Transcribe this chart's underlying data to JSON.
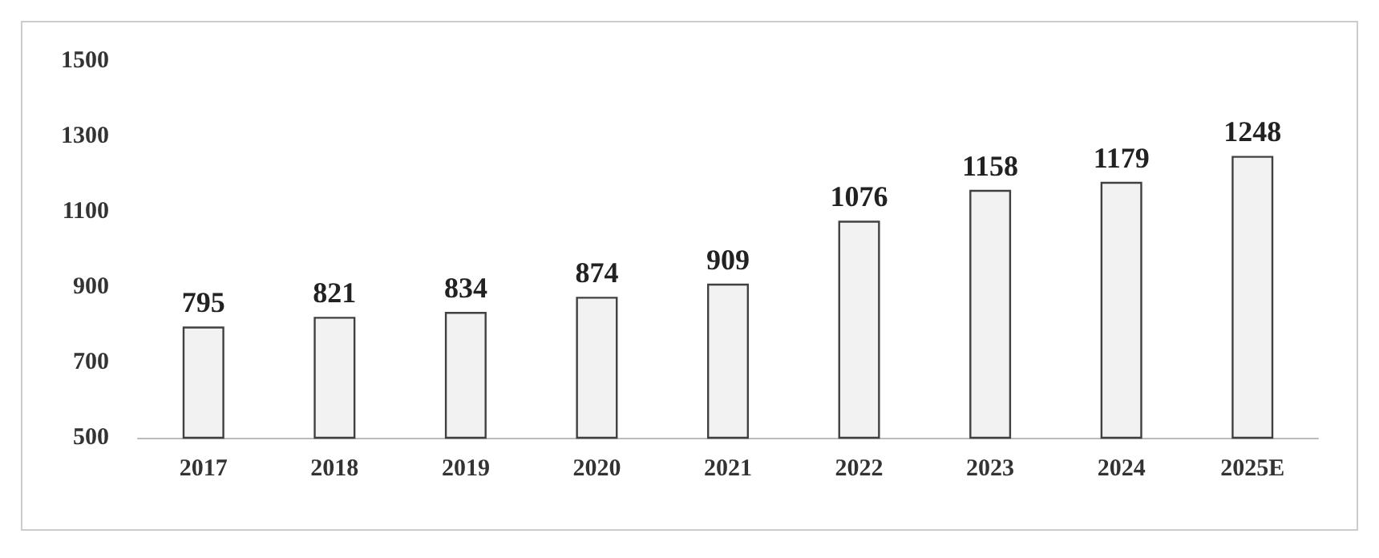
{
  "chart_data": {
    "type": "bar",
    "categories": [
      "2017",
      "2018",
      "2019",
      "2020",
      "2021",
      "2022",
      "2023",
      "2024",
      "2025E"
    ],
    "values": [
      795,
      821,
      834,
      874,
      909,
      1076,
      1158,
      1179,
      1248
    ],
    "color": "#f2f2f2",
    "ylim": [
      500,
      1500
    ],
    "yticks": [
      500,
      700,
      900,
      1100,
      1300,
      1500
    ],
    "grid": false,
    "data_labels": true
  }
}
